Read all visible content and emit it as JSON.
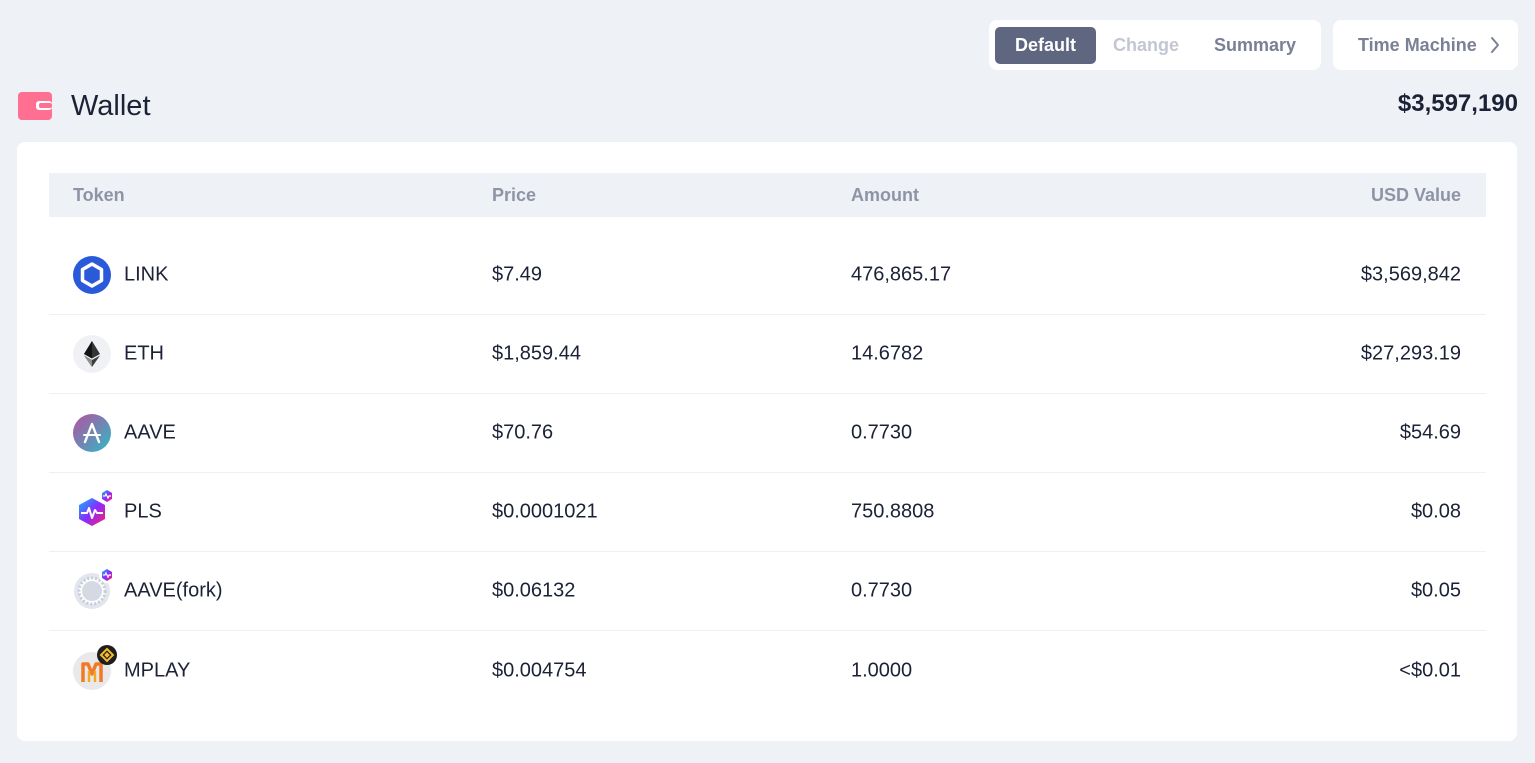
{
  "view_tabs": [
    {
      "label": "Default",
      "active": true
    },
    {
      "label": "Change",
      "active": false
    },
    {
      "label": "Summary",
      "active": false
    }
  ],
  "time_machine": {
    "label": "Time Machine",
    "icon": "chevron-right-icon"
  },
  "wallet": {
    "title": "Wallet",
    "icon": "wallet-icon",
    "total": "$3,597,190"
  },
  "table": {
    "headers": {
      "token": "Token",
      "price": "Price",
      "amount": "Amount",
      "usd_value": "USD Value"
    },
    "rows": [
      {
        "token": "LINK",
        "icon": "link-token-icon",
        "price": "$7.49",
        "amount": "476,865.17",
        "usd_value": "$3,569,842"
      },
      {
        "token": "ETH",
        "icon": "eth-token-icon",
        "price": "$1,859.44",
        "amount": "14.6782",
        "usd_value": "$27,293.19"
      },
      {
        "token": "AAVE",
        "icon": "aave-token-icon",
        "price": "$70.76",
        "amount": "0.7730",
        "usd_value": "$54.69"
      },
      {
        "token": "PLS",
        "icon": "pls-token-icon",
        "price": "$0.0001021",
        "amount": "750.8808",
        "usd_value": "$0.08"
      },
      {
        "token": "AAVE(fork)",
        "icon": "aave-fork-token-icon",
        "price": "$0.06132",
        "amount": "0.7730",
        "usd_value": "$0.05"
      },
      {
        "token": "MPLAY",
        "icon": "mplay-token-icon",
        "price": "$0.004754",
        "amount": "1.0000",
        "usd_value": "<$0.01"
      }
    ]
  },
  "colors": {
    "background": "#eef1f6",
    "active_tab": "#5f6680",
    "wallet_icon": "#ff6f91",
    "link_blue": "#2a5ada"
  }
}
